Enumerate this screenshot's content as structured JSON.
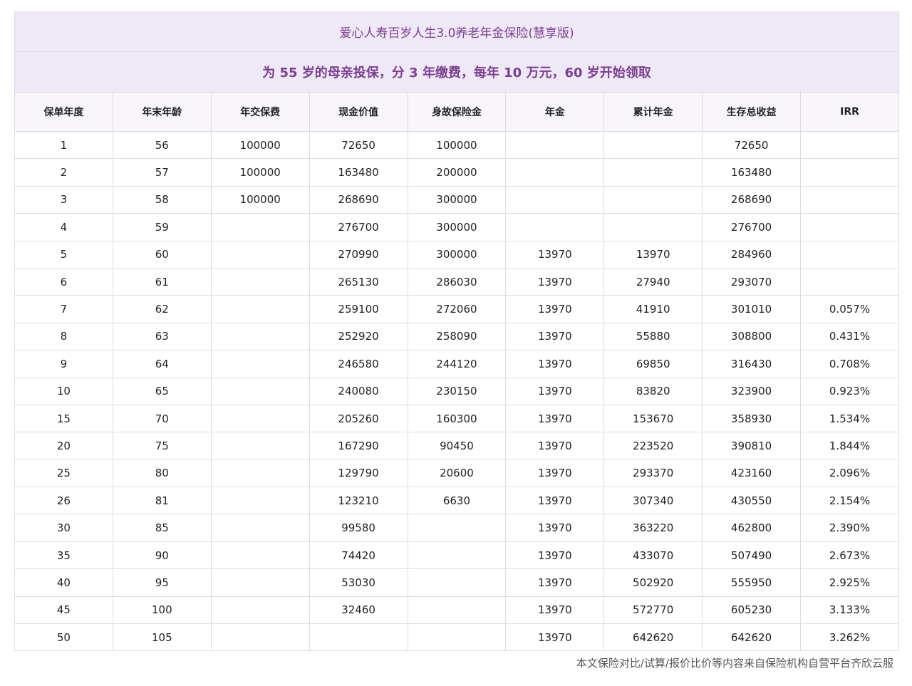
{
  "title": "爱心人寿百岁人生3.0养老年金保险(慧享版)",
  "subtitle": "为 55 岁的母亲投保，分 3 年缴费，每年 10 万元，60 岁开始领取",
  "columns": [
    "保单年度",
    "年末年龄",
    "年交保费",
    "现金价值",
    "身故保险金",
    "年金",
    "累计年金",
    "生存总收益",
    "IRR"
  ],
  "rows": [
    [
      "1",
      "56",
      "100000",
      "72650",
      "100000",
      "",
      "",
      "72650",
      ""
    ],
    [
      "2",
      "57",
      "100000",
      "163480",
      "200000",
      "",
      "",
      "163480",
      ""
    ],
    [
      "3",
      "58",
      "100000",
      "268690",
      "300000",
      "",
      "",
      "268690",
      ""
    ],
    [
      "4",
      "59",
      "",
      "276700",
      "300000",
      "",
      "",
      "276700",
      ""
    ],
    [
      "5",
      "60",
      "",
      "270990",
      "300000",
      "13970",
      "13970",
      "284960",
      ""
    ],
    [
      "6",
      "61",
      "",
      "265130",
      "286030",
      "13970",
      "27940",
      "293070",
      ""
    ],
    [
      "7",
      "62",
      "",
      "259100",
      "272060",
      "13970",
      "41910",
      "301010",
      "0.057%"
    ],
    [
      "8",
      "63",
      "",
      "252920",
      "258090",
      "13970",
      "55880",
      "308800",
      "0.431%"
    ],
    [
      "9",
      "64",
      "",
      "246580",
      "244120",
      "13970",
      "69850",
      "316430",
      "0.708%"
    ],
    [
      "10",
      "65",
      "",
      "240080",
      "230150",
      "13970",
      "83820",
      "323900",
      "0.923%"
    ],
    [
      "15",
      "70",
      "",
      "205260",
      "160300",
      "13970",
      "153670",
      "358930",
      "1.534%"
    ],
    [
      "20",
      "75",
      "",
      "167290",
      "90450",
      "13970",
      "223520",
      "390810",
      "1.844%"
    ],
    [
      "25",
      "80",
      "",
      "129790",
      "20600",
      "13970",
      "293370",
      "423160",
      "2.096%"
    ],
    [
      "26",
      "81",
      "",
      "123210",
      "6630",
      "13970",
      "307340",
      "430550",
      "2.154%"
    ],
    [
      "30",
      "85",
      "",
      "99580",
      "",
      "13970",
      "363220",
      "462800",
      "2.390%"
    ],
    [
      "35",
      "90",
      "",
      "74420",
      "",
      "13970",
      "433070",
      "507490",
      "2.673%"
    ],
    [
      "40",
      "95",
      "",
      "53030",
      "",
      "13970",
      "502920",
      "555950",
      "2.925%"
    ],
    [
      "45",
      "100",
      "",
      "32460",
      "",
      "13970",
      "572770",
      "605230",
      "3.133%"
    ],
    [
      "50",
      "105",
      "",
      "",
      "",
      "13970",
      "642620",
      "642620",
      "3.262%"
    ]
  ],
  "footer": "本文保险对比/试算/报价比价等内容来自保险机构自营平台齐欣云服",
  "colors": {
    "accent": "#7b3f8f",
    "header_bg": "#efe8f6"
  }
}
